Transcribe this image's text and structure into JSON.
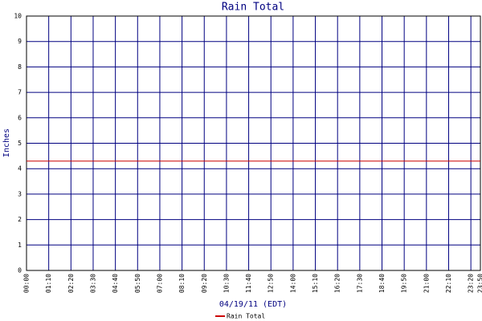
{
  "chart_data": {
    "type": "line",
    "title": "Rain Total",
    "y_label": "Inches",
    "x_label": "04/19/11 (EDT)",
    "x": [
      0,
      1430
    ],
    "series": [
      {
        "name": "Rain Total",
        "color": "#cc0000",
        "values": [
          4.3,
          4.3
        ]
      }
    ],
    "xlim": [
      0,
      1430
    ],
    "xticks": [
      {
        "value": 0,
        "label": "00:00"
      },
      {
        "value": 70,
        "label": "01:10"
      },
      {
        "value": 140,
        "label": "02:20"
      },
      {
        "value": 210,
        "label": "03:30"
      },
      {
        "value": 280,
        "label": "04:40"
      },
      {
        "value": 350,
        "label": "05:50"
      },
      {
        "value": 420,
        "label": "07:00"
      },
      {
        "value": 490,
        "label": "08:10"
      },
      {
        "value": 560,
        "label": "09:20"
      },
      {
        "value": 630,
        "label": "10:30"
      },
      {
        "value": 700,
        "label": "11:40"
      },
      {
        "value": 770,
        "label": "12:50"
      },
      {
        "value": 840,
        "label": "14:00"
      },
      {
        "value": 910,
        "label": "15:10"
      },
      {
        "value": 980,
        "label": "16:20"
      },
      {
        "value": 1050,
        "label": "17:30"
      },
      {
        "value": 1120,
        "label": "18:40"
      },
      {
        "value": 1190,
        "label": "19:50"
      },
      {
        "value": 1260,
        "label": "21:00"
      },
      {
        "value": 1330,
        "label": "22:10"
      },
      {
        "value": 1400,
        "label": "23:20"
      },
      {
        "value": 1430,
        "label": "23:50"
      }
    ],
    "ylim": [
      0,
      10
    ],
    "yticks": [
      0,
      1,
      2,
      3,
      4,
      5,
      6,
      7,
      8,
      9,
      10
    ],
    "grid": true,
    "grid_color": "#000080",
    "legend": "bottom"
  }
}
